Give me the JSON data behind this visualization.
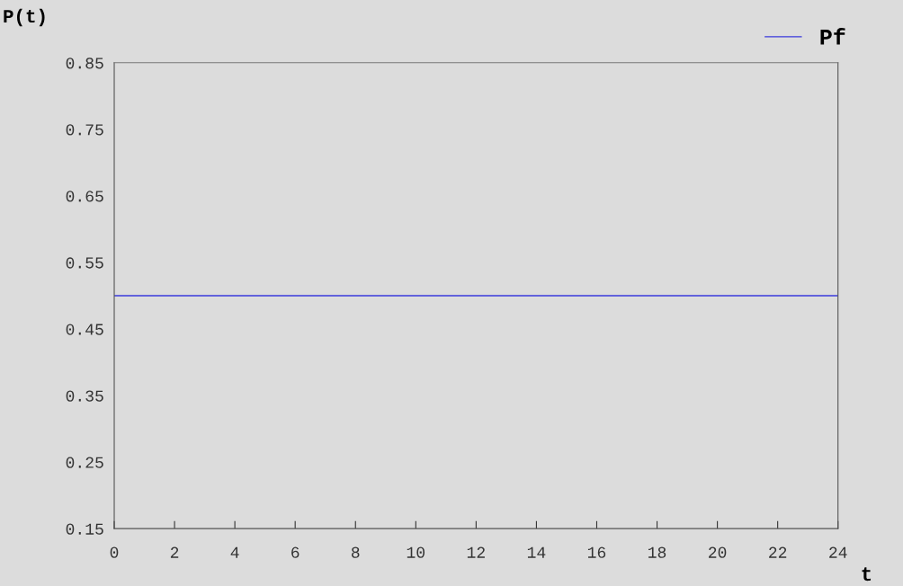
{
  "chart_data": {
    "type": "line",
    "ylabel": "P(t)",
    "xlabel": "t",
    "x": [
      0,
      24
    ],
    "series": [
      {
        "name": "Pf",
        "color": "#3a3adc",
        "values": [
          0.5,
          0.5
        ]
      }
    ],
    "xlim": [
      0,
      24
    ],
    "xticks": [
      0,
      2,
      4,
      6,
      8,
      10,
      12,
      14,
      16,
      18,
      20,
      22,
      24
    ],
    "ylim": [
      0.15,
      0.85
    ],
    "yticks": [
      0.15,
      0.25,
      0.35,
      0.45,
      0.55,
      0.65,
      0.75,
      0.85
    ],
    "grid": false,
    "legend": "top right",
    "marker": "none",
    "line_style": "solid"
  }
}
